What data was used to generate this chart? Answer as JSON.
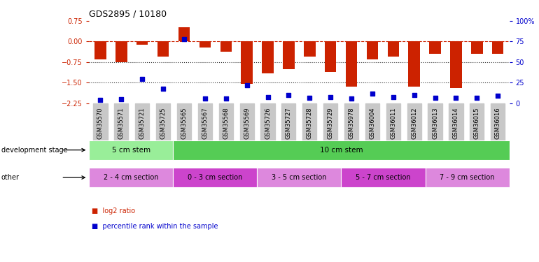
{
  "title": "GDS2895 / 10180",
  "samples": [
    "GSM35570",
    "GSM35571",
    "GSM35721",
    "GSM35725",
    "GSM35565",
    "GSM35567",
    "GSM35568",
    "GSM35569",
    "GSM35726",
    "GSM35727",
    "GSM35728",
    "GSM35729",
    "GSM35978",
    "GSM36004",
    "GSM36011",
    "GSM36012",
    "GSM36013",
    "GSM36014",
    "GSM36015",
    "GSM36016"
  ],
  "log2_ratio": [
    -0.65,
    -0.75,
    -0.12,
    -0.55,
    0.52,
    -0.22,
    -0.38,
    -1.55,
    -1.15,
    -1.0,
    -0.55,
    -1.1,
    -1.65,
    -0.65,
    -0.55,
    -1.65,
    -0.45,
    -1.7,
    -0.45,
    -0.45
  ],
  "percentile": [
    4,
    5,
    30,
    18,
    78,
    6,
    6,
    22,
    8,
    10,
    7,
    8,
    6,
    12,
    8,
    10,
    7,
    7,
    7,
    9
  ],
  "ylim_min": -2.35,
  "ylim_max": 0.75,
  "yticks_left": [
    0.75,
    0.0,
    -0.75,
    -1.5,
    -2.25
  ],
  "yticks_right_vals": [
    0.75,
    0.0,
    -0.75,
    -1.5,
    -2.25
  ],
  "yticks_right_labels": [
    "100%",
    "75",
    "50",
    "25",
    "0"
  ],
  "bar_color": "#cc2200",
  "dot_color": "#0000cc",
  "hline0_color": "#cc2200",
  "hline_color": "#333333",
  "bg_color": "#ffffff",
  "plot_bg": "#ffffff",
  "tick_color_left": "#cc2200",
  "tick_color_right": "#0000cc",
  "xticklabel_bg": "#c8c8c8",
  "bar_width": 0.55,
  "dot_size": 18,
  "dev_stage_label": "development stage",
  "dev_groups": [
    {
      "text": "5 cm stem",
      "start": 0,
      "end": 3,
      "color": "#99ee99"
    },
    {
      "text": "10 cm stem",
      "start": 4,
      "end": 19,
      "color": "#55cc55"
    }
  ],
  "other_label": "other",
  "other_groups": [
    {
      "text": "2 - 4 cm section",
      "start": 0,
      "end": 3,
      "color": "#dd88dd"
    },
    {
      "text": "0 - 3 cm section",
      "start": 4,
      "end": 7,
      "color": "#cc44cc"
    },
    {
      "text": "3 - 5 cm section",
      "start": 8,
      "end": 11,
      "color": "#dd88dd"
    },
    {
      "text": "5 - 7 cm section",
      "start": 12,
      "end": 15,
      "color": "#cc44cc"
    },
    {
      "text": "7 - 9 cm section",
      "start": 16,
      "end": 19,
      "color": "#dd88dd"
    }
  ],
  "legend_red": "log2 ratio",
  "legend_blue": "percentile rank within the sample"
}
